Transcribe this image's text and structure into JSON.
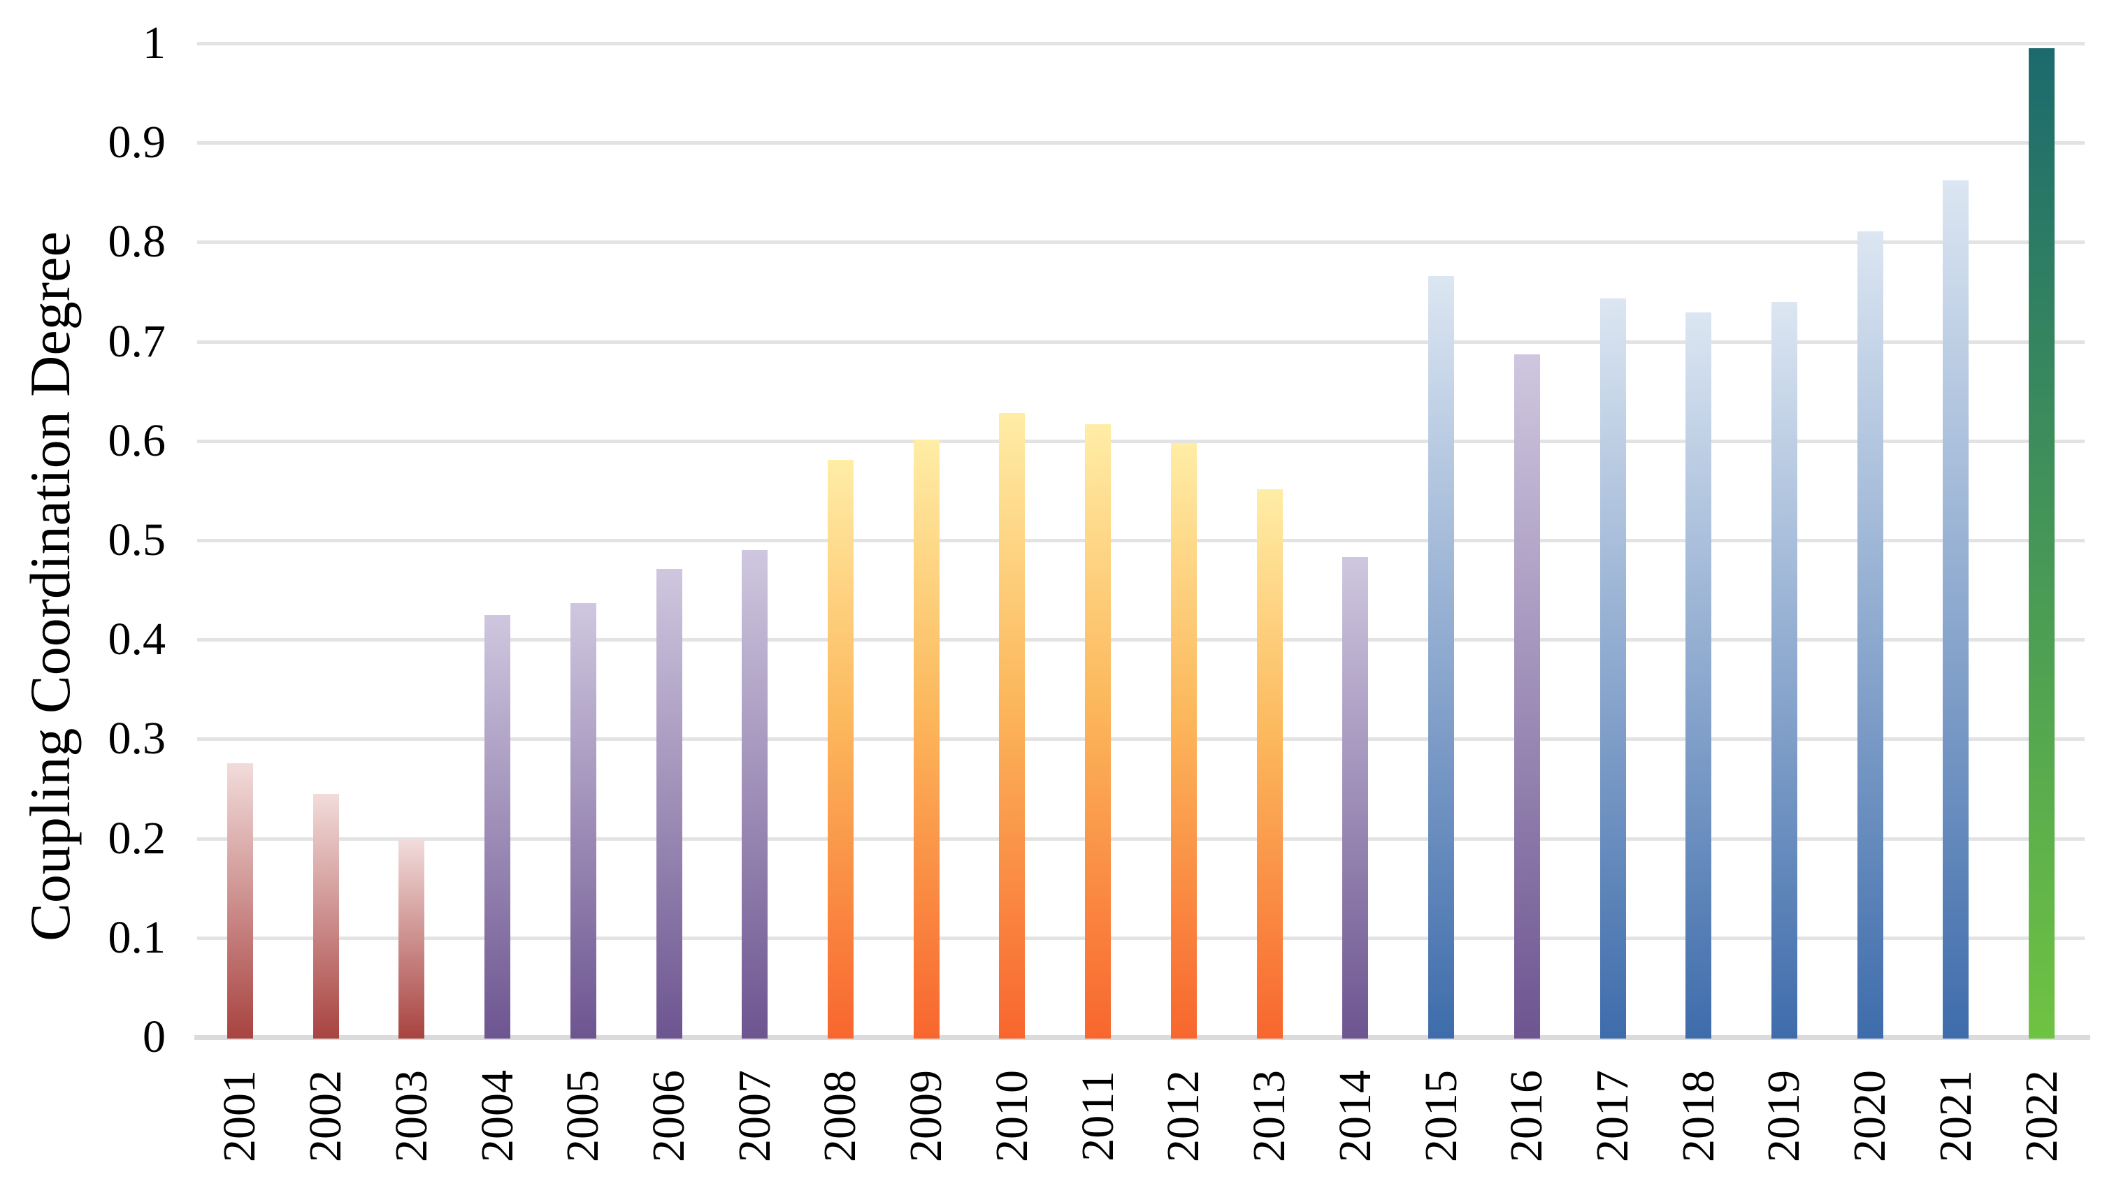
{
  "chart_data": {
    "type": "bar",
    "title": "",
    "xlabel": "",
    "ylabel": "Coupling Coordination Degree",
    "ylim": [
      0,
      1
    ],
    "ytick_step": 0.1,
    "ytick_labels": [
      "1",
      "0.9",
      "0.8",
      "0.7",
      "0.6",
      "0.5",
      "0.4",
      "0.3",
      "0.2",
      "0.1",
      "0"
    ],
    "grid": "horizontal-only",
    "legend_position": "none",
    "categories": [
      "2001",
      "2002",
      "2003",
      "2004",
      "2005",
      "2006",
      "2007",
      "2008",
      "2009",
      "2010",
      "2011",
      "2012",
      "2013",
      "2014",
      "2015",
      "2016",
      "2017",
      "2018",
      "2019",
      "2020",
      "2021",
      "2022"
    ],
    "values": [
      0.276,
      0.245,
      0.199,
      0.425,
      0.437,
      0.471,
      0.49,
      0.581,
      0.601,
      0.628,
      0.617,
      0.598,
      0.551,
      0.483,
      0.766,
      0.687,
      0.743,
      0.729,
      0.74,
      0.811,
      0.862,
      0.995
    ],
    "bar_color_groups": [
      "red",
      "red",
      "red",
      "purple",
      "purple",
      "purple",
      "purple",
      "orange",
      "orange",
      "orange",
      "orange",
      "orange",
      "orange",
      "purple",
      "blue",
      "purple",
      "blue",
      "blue",
      "blue",
      "blue",
      "blue",
      "green"
    ],
    "palette": {
      "red": {
        "top": "#f1dcdb",
        "bottom": "#a84340"
      },
      "purple": {
        "top": "#cfc7df",
        "bottom": "#6d5590"
      },
      "orange": {
        "top": "#ffeda6",
        "mid": "#fcb85c",
        "bottom": "#f8662e"
      },
      "blue": {
        "top": "#dce6f2",
        "bottom": "#3e6cab"
      },
      "green": {
        "top": "#1c6a6d",
        "bottom": "#6fc342"
      }
    },
    "gridline_color": "#e3e3e3",
    "axis_line_color": "#dbdbdb",
    "text_color": "#000000"
  }
}
